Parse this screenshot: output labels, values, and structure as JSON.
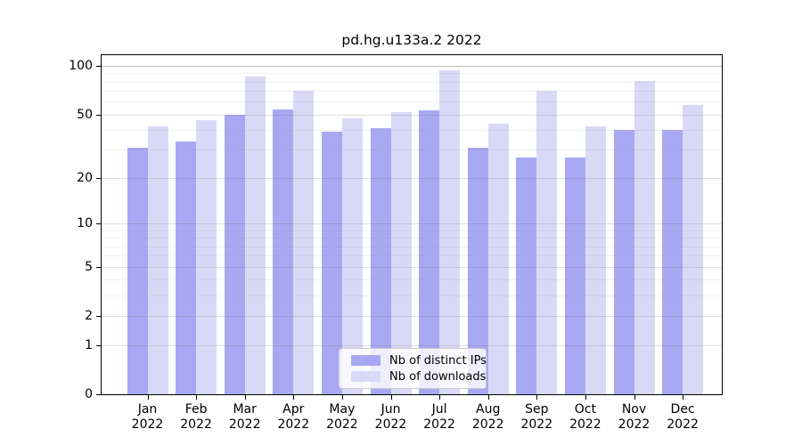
{
  "title": "pd.hg.u133a.2 2022",
  "colors": {
    "distinct_ips_bar": "#a8a8f2",
    "downloads_bar": "#d9d9f7",
    "axis": "#000000",
    "grid_major": "rgba(110,110,110,0.22)",
    "grid_top": "rgba(90,90,90,0.38)",
    "grid_minor": "rgba(140,140,140,0.12)"
  },
  "legend": {
    "items": [
      {
        "label": "Nb of distinct IPs",
        "color": "#a8a8f2"
      },
      {
        "label": "Nb of downloads",
        "color": "#d9d9f7"
      }
    ]
  },
  "chart_data": {
    "type": "bar",
    "title": "pd.hg.u133a.2 2022",
    "categories": [
      "Jan 2022",
      "Feb 2022",
      "Mar 2022",
      "Apr 2022",
      "May 2022",
      "Jun 2022",
      "Jul 2022",
      "Aug 2022",
      "Sep 2022",
      "Oct 2022",
      "Nov 2022",
      "Dec 2022"
    ],
    "series": [
      {
        "name": "Nb of distinct IPs",
        "color": "#a8a8f2",
        "values": [
          31,
          34,
          50,
          54,
          39,
          41,
          53,
          31,
          27,
          27,
          40,
          40
        ]
      },
      {
        "name": "Nb of downloads",
        "color": "#d9d9f7",
        "values": [
          42,
          46,
          86,
          70,
          47,
          52,
          94,
          44,
          70,
          42,
          81,
          57
        ]
      }
    ],
    "xlabel": "",
    "ylabel": "",
    "y_scale": "log1p",
    "ylim": [
      0,
      117
    ],
    "y_ticks": [
      0,
      1,
      2,
      5,
      10,
      20,
      50,
      100
    ],
    "y_minor_ticks": [
      3,
      4,
      6,
      7,
      8,
      9,
      30,
      40,
      60,
      70,
      80,
      90
    ],
    "grid": "on",
    "legend_position": "lower center"
  }
}
